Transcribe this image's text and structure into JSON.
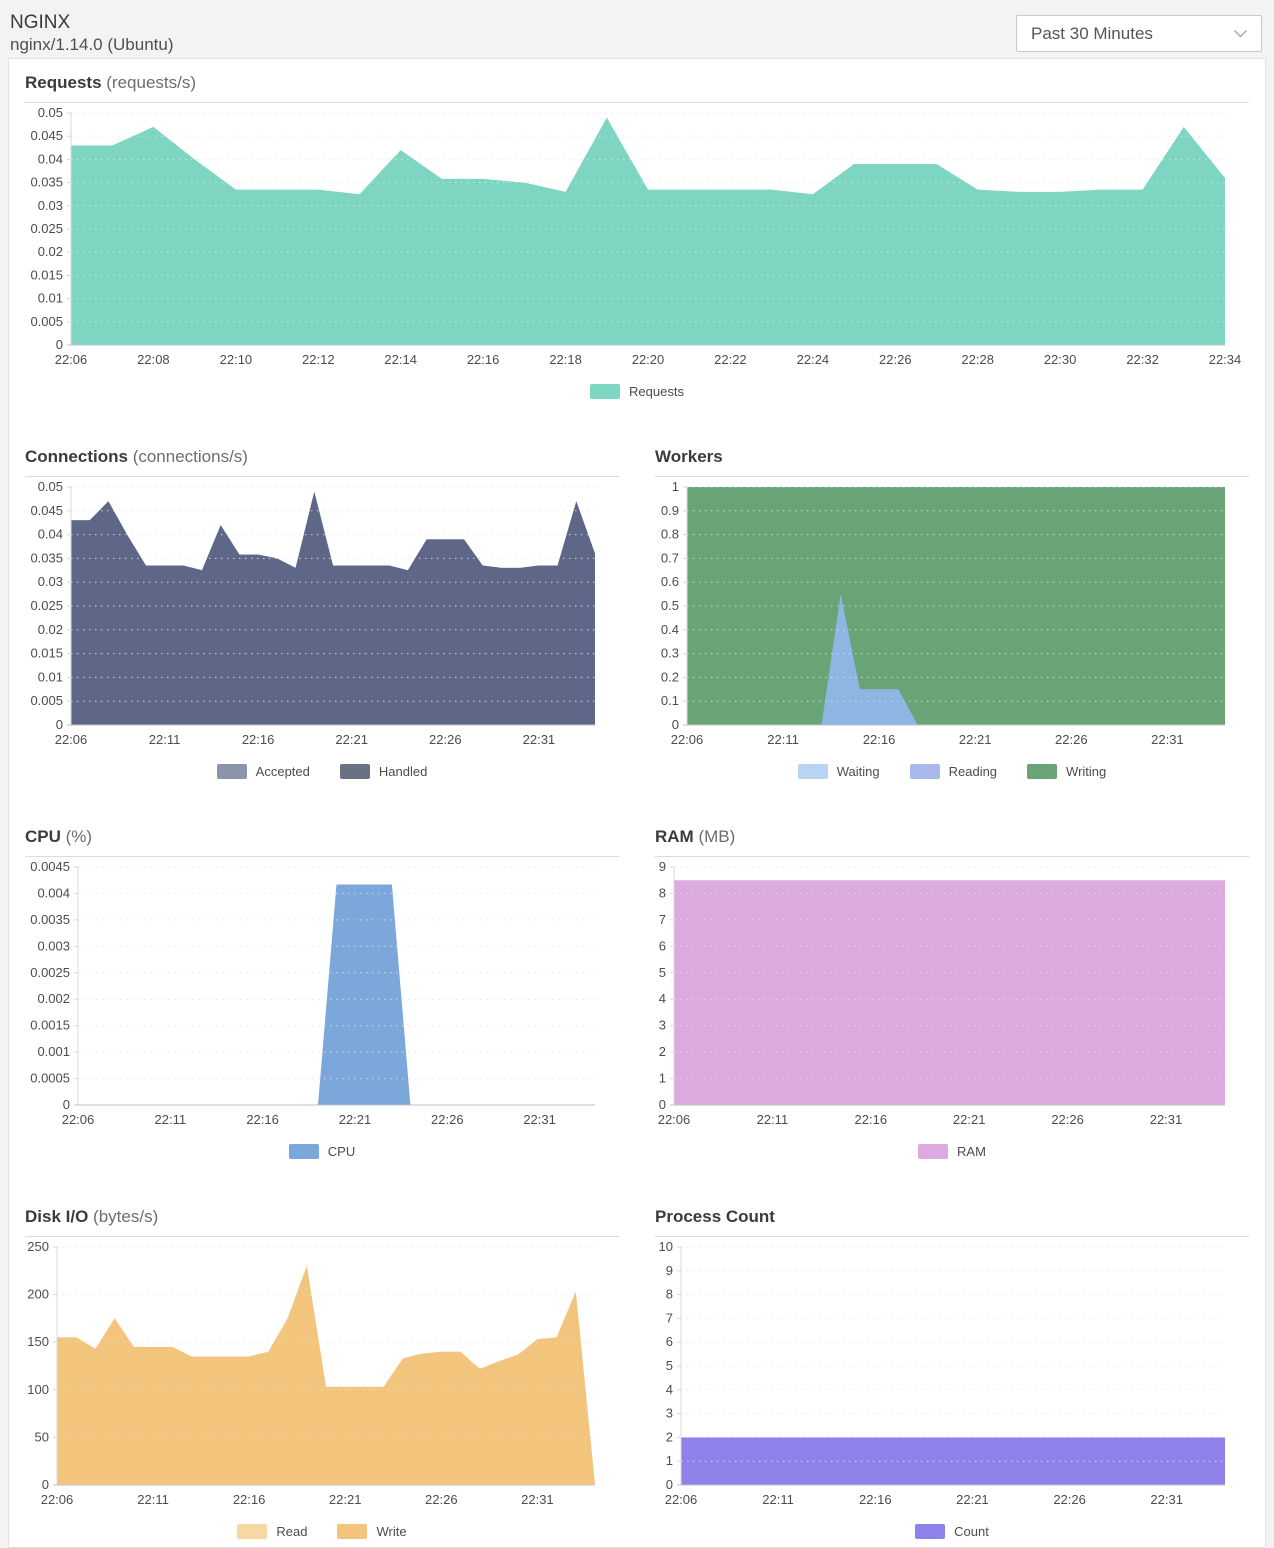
{
  "header": {
    "title": "NGINX",
    "subtitle": "nginx/1.14.0 (Ubuntu)",
    "time_range": "Past 30 Minutes"
  },
  "colors": {
    "page_background": "#f3f3f4",
    "panel_background": "#ffffff",
    "grid_line": "#e2e2e2",
    "axis_line": "#d8d8d8",
    "baseline": "#c2c2c4"
  },
  "chart_data": [
    {
      "type": "area",
      "title": "Requests",
      "unit": "(requests/s)",
      "grid": true,
      "legend_position": "bottom",
      "x_start": "22:06",
      "x_end": "22:34",
      "x_span_minutes": 28,
      "xticks": {
        "labels": [
          "22:06",
          "22:08",
          "22:10",
          "22:12",
          "22:14",
          "22:16",
          "22:18",
          "22:20",
          "22:22",
          "22:24",
          "22:26",
          "22:28",
          "22:30",
          "22:32",
          "22:34"
        ],
        "t": [
          0,
          2,
          4,
          6,
          8,
          10,
          12,
          14,
          16,
          18,
          20,
          22,
          24,
          26,
          28
        ]
      },
      "yticks": {
        "labels": [
          "0",
          "0.005",
          "0.01",
          "0.015",
          "0.02",
          "0.025",
          "0.03",
          "0.035",
          "0.04",
          "0.045",
          "0.05"
        ],
        "values": [
          0,
          0.005,
          0.01,
          0.015,
          0.02,
          0.025,
          0.03,
          0.035,
          0.04,
          0.045,
          0.05
        ]
      },
      "ylim": [
        0,
        0.05
      ],
      "series": [
        {
          "name": "Requests",
          "color": "#7ed5c2",
          "values": [
            0.043,
            0.043,
            0.047,
            0.04,
            0.0335,
            0.0335,
            0.0335,
            0.0325,
            0.042,
            0.0358,
            0.0358,
            0.035,
            0.033,
            0.049,
            0.0335,
            0.0335,
            0.0335,
            0.0335,
            0.0325,
            0.039,
            0.039,
            0.039,
            0.0335,
            0.033,
            0.033,
            0.0335,
            0.0335,
            0.047,
            0.036
          ]
        }
      ]
    },
    {
      "type": "area",
      "title": "Connections",
      "unit": "(connections/s)",
      "grid": true,
      "legend_position": "bottom",
      "x_start": "22:06",
      "x_end": "22:34",
      "x_span_minutes": 28,
      "xticks": {
        "labels": [
          "22:06",
          "22:11",
          "22:16",
          "22:21",
          "22:26",
          "22:31"
        ],
        "t": [
          0,
          5,
          10,
          15,
          20,
          25
        ]
      },
      "yticks": {
        "labels": [
          "0",
          "0.005",
          "0.01",
          "0.015",
          "0.02",
          "0.025",
          "0.03",
          "0.035",
          "0.04",
          "0.045",
          "0.05"
        ],
        "values": [
          0,
          0.005,
          0.01,
          0.015,
          0.02,
          0.025,
          0.03,
          0.035,
          0.04,
          0.045,
          0.05
        ]
      },
      "ylim": [
        0,
        0.05
      ],
      "series": [
        {
          "name": "Accepted",
          "color": "#8a94ab",
          "values": [
            0.043,
            0.043,
            0.047,
            0.04,
            0.0335,
            0.0335,
            0.0335,
            0.0325,
            0.042,
            0.0358,
            0.0358,
            0.035,
            0.033,
            0.049,
            0.0335,
            0.0335,
            0.0335,
            0.0335,
            0.0325,
            0.039,
            0.039,
            0.039,
            0.0335,
            0.033,
            0.033,
            0.0335,
            0.0335,
            0.047,
            0.036
          ]
        },
        {
          "name": "Handled",
          "color": "#5e6787",
          "legend_color": "#6a7184",
          "values": [
            0.043,
            0.043,
            0.047,
            0.04,
            0.0335,
            0.0335,
            0.0335,
            0.0325,
            0.042,
            0.0358,
            0.0358,
            0.035,
            0.033,
            0.049,
            0.0335,
            0.0335,
            0.0335,
            0.0335,
            0.0325,
            0.039,
            0.039,
            0.039,
            0.0335,
            0.033,
            0.033,
            0.0335,
            0.0335,
            0.047,
            0.036
          ]
        }
      ]
    },
    {
      "type": "area",
      "title": "Workers",
      "unit": "",
      "grid": true,
      "legend_position": "bottom",
      "draw_order": [
        2,
        1,
        0
      ],
      "x_start": "22:06",
      "x_end": "22:34",
      "x_span_minutes": 28,
      "xticks": {
        "labels": [
          "22:06",
          "22:11",
          "22:16",
          "22:21",
          "22:26",
          "22:31"
        ],
        "t": [
          0,
          5,
          10,
          15,
          20,
          25
        ]
      },
      "yticks": {
        "labels": [
          "0",
          "0.1",
          "0.2",
          "0.3",
          "0.4",
          "0.5",
          "0.6",
          "0.7",
          "0.8",
          "0.9",
          "1"
        ],
        "values": [
          0,
          0.1,
          0.2,
          0.3,
          0.4,
          0.5,
          0.6,
          0.7,
          0.8,
          0.9,
          1
        ]
      },
      "ylim": [
        0,
        1
      ],
      "series": [
        {
          "name": "Waiting",
          "color": "#8fb5e3",
          "legend_color": "#b9d3f2",
          "values": [
            0,
            0,
            0,
            0,
            0,
            0,
            0,
            0,
            0.55,
            0.15,
            0.15,
            0.15,
            0,
            0,
            0,
            0,
            0,
            0,
            0,
            0,
            0,
            0,
            0,
            0,
            0,
            0,
            0,
            0,
            0
          ]
        },
        {
          "name": "Reading",
          "color": "#aab9ec",
          "values": [
            0,
            0,
            0,
            0,
            0,
            0,
            0,
            0,
            0,
            0,
            0,
            0,
            0,
            0,
            0,
            0,
            0,
            0,
            0,
            0,
            0,
            0,
            0,
            0,
            0,
            0,
            0,
            0,
            0
          ]
        },
        {
          "name": "Writing",
          "color": "#69a477",
          "values": [
            1,
            1,
            1,
            1,
            1,
            1,
            1,
            1,
            1,
            1,
            1,
            1,
            1,
            1,
            1,
            1,
            1,
            1,
            1,
            1,
            1,
            1,
            1,
            1,
            1,
            1,
            1,
            1,
            1
          ]
        }
      ]
    },
    {
      "type": "area",
      "title": "CPU",
      "unit": "(%)",
      "grid": true,
      "legend_position": "bottom",
      "x_start": "22:06",
      "x_end": "22:34",
      "x_span_minutes": 28,
      "xticks": {
        "labels": [
          "22:06",
          "22:11",
          "22:16",
          "22:21",
          "22:26",
          "22:31"
        ],
        "t": [
          0,
          5,
          10,
          15,
          20,
          25
        ]
      },
      "yticks": {
        "labels": [
          "0",
          "0.0005",
          "0.001",
          "0.0015",
          "0.002",
          "0.0025",
          "0.003",
          "0.0035",
          "0.004",
          "0.0045"
        ],
        "values": [
          0,
          0.0005,
          0.001,
          0.0015,
          0.002,
          0.0025,
          0.003,
          0.0035,
          0.004,
          0.0045
        ]
      },
      "ylim": [
        0,
        0.0045
      ],
      "series": [
        {
          "name": "CPU",
          "color": "#7ca7db",
          "values": [
            0,
            0,
            0,
            0,
            0,
            0,
            0,
            0,
            0,
            0,
            0,
            0,
            0,
            0,
            0.00417,
            0.00417,
            0.00417,
            0.00417,
            0,
            0,
            0,
            0,
            0,
            0,
            0,
            0,
            0,
            0,
            0
          ]
        }
      ]
    },
    {
      "type": "area",
      "title": "RAM",
      "unit": "(MB)",
      "grid": true,
      "legend_position": "bottom",
      "x_start": "22:06",
      "x_end": "22:34",
      "x_span_minutes": 28,
      "xticks": {
        "labels": [
          "22:06",
          "22:11",
          "22:16",
          "22:21",
          "22:26",
          "22:31"
        ],
        "t": [
          0,
          5,
          10,
          15,
          20,
          25
        ]
      },
      "yticks": {
        "labels": [
          "0",
          "1",
          "2",
          "3",
          "4",
          "5",
          "6",
          "7",
          "8",
          "9"
        ],
        "values": [
          0,
          1,
          2,
          3,
          4,
          5,
          6,
          7,
          8,
          9
        ]
      },
      "ylim": [
        0,
        9
      ],
      "series": [
        {
          "name": "RAM",
          "color": "#dcaade",
          "values": [
            8.5,
            8.5,
            8.5,
            8.5,
            8.5,
            8.5,
            8.5,
            8.5,
            8.5,
            8.5,
            8.5,
            8.5,
            8.5,
            8.5,
            8.5,
            8.5,
            8.5,
            8.5,
            8.5,
            8.5,
            8.5,
            8.5,
            8.5,
            8.5,
            8.5,
            8.5,
            8.5,
            8.5,
            8.5
          ]
        }
      ]
    },
    {
      "type": "area",
      "title": "Disk I/O",
      "unit": "(bytes/s)",
      "grid": true,
      "legend_position": "bottom",
      "x_start": "22:06",
      "x_end": "22:34",
      "x_span_minutes": 28,
      "xticks": {
        "labels": [
          "22:06",
          "22:11",
          "22:16",
          "22:21",
          "22:26",
          "22:31"
        ],
        "t": [
          0,
          5,
          10,
          15,
          20,
          25
        ]
      },
      "yticks": {
        "labels": [
          "0",
          "50",
          "100",
          "150",
          "200",
          "250"
        ],
        "values": [
          0,
          50,
          100,
          150,
          200,
          250
        ]
      },
      "ylim": [
        0,
        250
      ],
      "series": [
        {
          "name": "Read",
          "color": "#f6d8a2",
          "values": [
            155,
            155,
            143,
            175,
            145,
            145,
            145,
            135,
            135,
            135,
            135,
            140,
            175,
            230,
            103,
            103,
            103,
            103,
            133,
            138,
            140,
            140,
            122,
            130,
            137,
            153,
            155,
            203,
            0
          ]
        },
        {
          "name": "Write",
          "color": "#f3c47c",
          "values": [
            155,
            155,
            143,
            175,
            145,
            145,
            145,
            135,
            135,
            135,
            135,
            140,
            175,
            230,
            103,
            103,
            103,
            103,
            133,
            138,
            140,
            140,
            122,
            130,
            137,
            153,
            155,
            203,
            0
          ]
        }
      ]
    },
    {
      "type": "area",
      "title": "Process Count",
      "unit": "",
      "grid": true,
      "legend_position": "bottom",
      "x_start": "22:06",
      "x_end": "22:34",
      "x_span_minutes": 28,
      "xticks": {
        "labels": [
          "22:06",
          "22:11",
          "22:16",
          "22:21",
          "22:26",
          "22:31"
        ],
        "t": [
          0,
          5,
          10,
          15,
          20,
          25
        ]
      },
      "yticks": {
        "labels": [
          "0",
          "1",
          "2",
          "3",
          "4",
          "5",
          "6",
          "7",
          "8",
          "9",
          "10"
        ],
        "values": [
          0,
          1,
          2,
          3,
          4,
          5,
          6,
          7,
          8,
          9,
          10
        ]
      },
      "ylim": [
        0,
        10
      ],
      "series": [
        {
          "name": "Count",
          "color": "#8e81e9",
          "values": [
            2,
            2,
            2,
            2,
            2,
            2,
            2,
            2,
            2,
            2,
            2,
            2,
            2,
            2,
            2,
            2,
            2,
            2,
            2,
            2,
            2,
            2,
            2,
            2,
            2,
            2,
            2,
            2,
            2
          ]
        }
      ]
    }
  ]
}
